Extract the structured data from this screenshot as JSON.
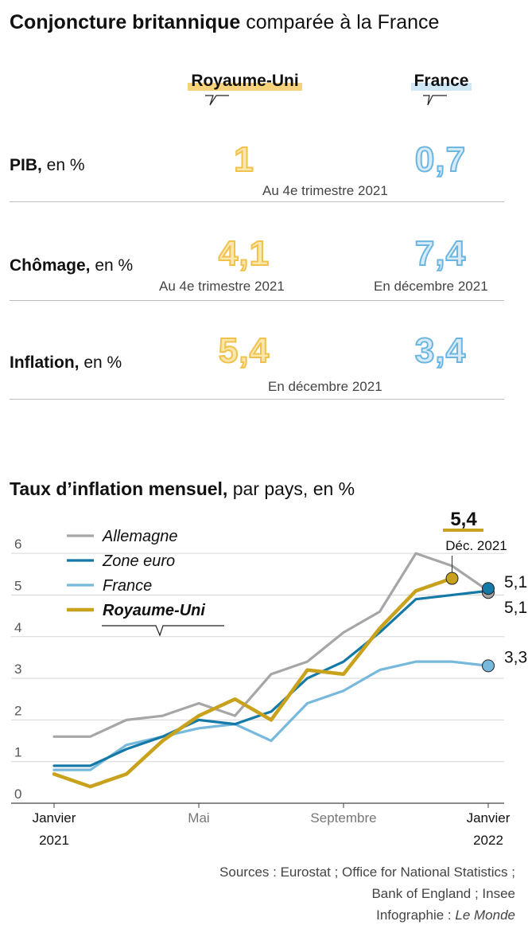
{
  "header": {
    "title_bold": "Conjoncture britannique",
    "title_rest": " comparée à la France"
  },
  "table": {
    "columns": [
      {
        "label": "Royaume-Uni",
        "color": "#f6d27a"
      },
      {
        "label": "France",
        "color": "#cfe6f5"
      }
    ],
    "rows": [
      {
        "label_bold": "PIB,",
        "label_rest": " en %",
        "uk": "1",
        "fr": "0,7",
        "note_shared": "Au 4e trimestre 2021"
      },
      {
        "label_bold": "Chômage,",
        "label_rest": " en %",
        "uk": "4,1",
        "fr": "7,4",
        "note_uk": "Au 4e trimestre 2021",
        "note_fr": "En décembre 2021"
      },
      {
        "label_bold": "Inflation,",
        "label_rest": " en %",
        "uk": "5,4",
        "fr": "3,4",
        "note_shared": "En décembre 2021"
      }
    ]
  },
  "chart_title": {
    "bold": "Taux d’inflation mensuel,",
    "rest": " par pays, en %"
  },
  "chart_data": {
    "type": "line",
    "title": "Taux d’inflation mensuel, par pays, en %",
    "x": [
      "2021-01",
      "2021-02",
      "2021-03",
      "2021-04",
      "2021-05",
      "2021-06",
      "2021-07",
      "2021-08",
      "2021-09",
      "2021-10",
      "2021-11",
      "2021-12",
      "2022-01"
    ],
    "x_tick_labels": [
      {
        "x": "2021-01",
        "lines": [
          "Janvier",
          "2021"
        ],
        "dark": true
      },
      {
        "x": "2021-05",
        "lines": [
          "Mai"
        ],
        "dark": false
      },
      {
        "x": "2021-09",
        "lines": [
          "Septembre"
        ],
        "dark": false
      },
      {
        "x": "2022-01",
        "lines": [
          "Janvier",
          "2022"
        ],
        "dark": true
      }
    ],
    "ylim": [
      0,
      6.5
    ],
    "y_ticks": [
      0,
      1,
      2,
      3,
      4,
      5,
      6
    ],
    "grid": true,
    "legend": "top-left",
    "series": [
      {
        "name": "Allemagne",
        "color": "#a6a6a6",
        "values": [
          1.6,
          1.6,
          2.0,
          2.1,
          2.4,
          2.1,
          3.1,
          3.4,
          4.1,
          4.6,
          6.0,
          5.7,
          5.1
        ],
        "end_label": "5,1"
      },
      {
        "name": "Zone euro",
        "color": "#1479a7",
        "values": [
          0.9,
          0.9,
          1.3,
          1.6,
          2.0,
          1.9,
          2.2,
          3.0,
          3.4,
          4.1,
          4.9,
          5.0,
          5.1
        ],
        "end_label": "5,1"
      },
      {
        "name": "France",
        "color": "#77b9dc",
        "values": [
          0.8,
          0.8,
          1.4,
          1.6,
          1.8,
          1.9,
          1.5,
          2.4,
          2.7,
          3.2,
          3.4,
          3.4,
          3.3
        ],
        "end_label": "3,3"
      },
      {
        "name": "Royaume-Uni",
        "color": "#c9a21d",
        "values": [
          0.7,
          0.4,
          0.7,
          1.5,
          2.1,
          2.5,
          2.0,
          3.2,
          3.1,
          4.2,
          5.1,
          5.4,
          null
        ]
      }
    ],
    "annotation": {
      "series": "Royaume-Uni",
      "x": "2021-12",
      "value": "5,4",
      "label": "Déc. 2021"
    }
  },
  "sources": {
    "line1": "Sources : Eurostat ; Office for National Statistics ;",
    "line2": "Bank of England ; Insee",
    "line3_prefix": "Infographie : ",
    "line3_italic": "Le Monde"
  }
}
